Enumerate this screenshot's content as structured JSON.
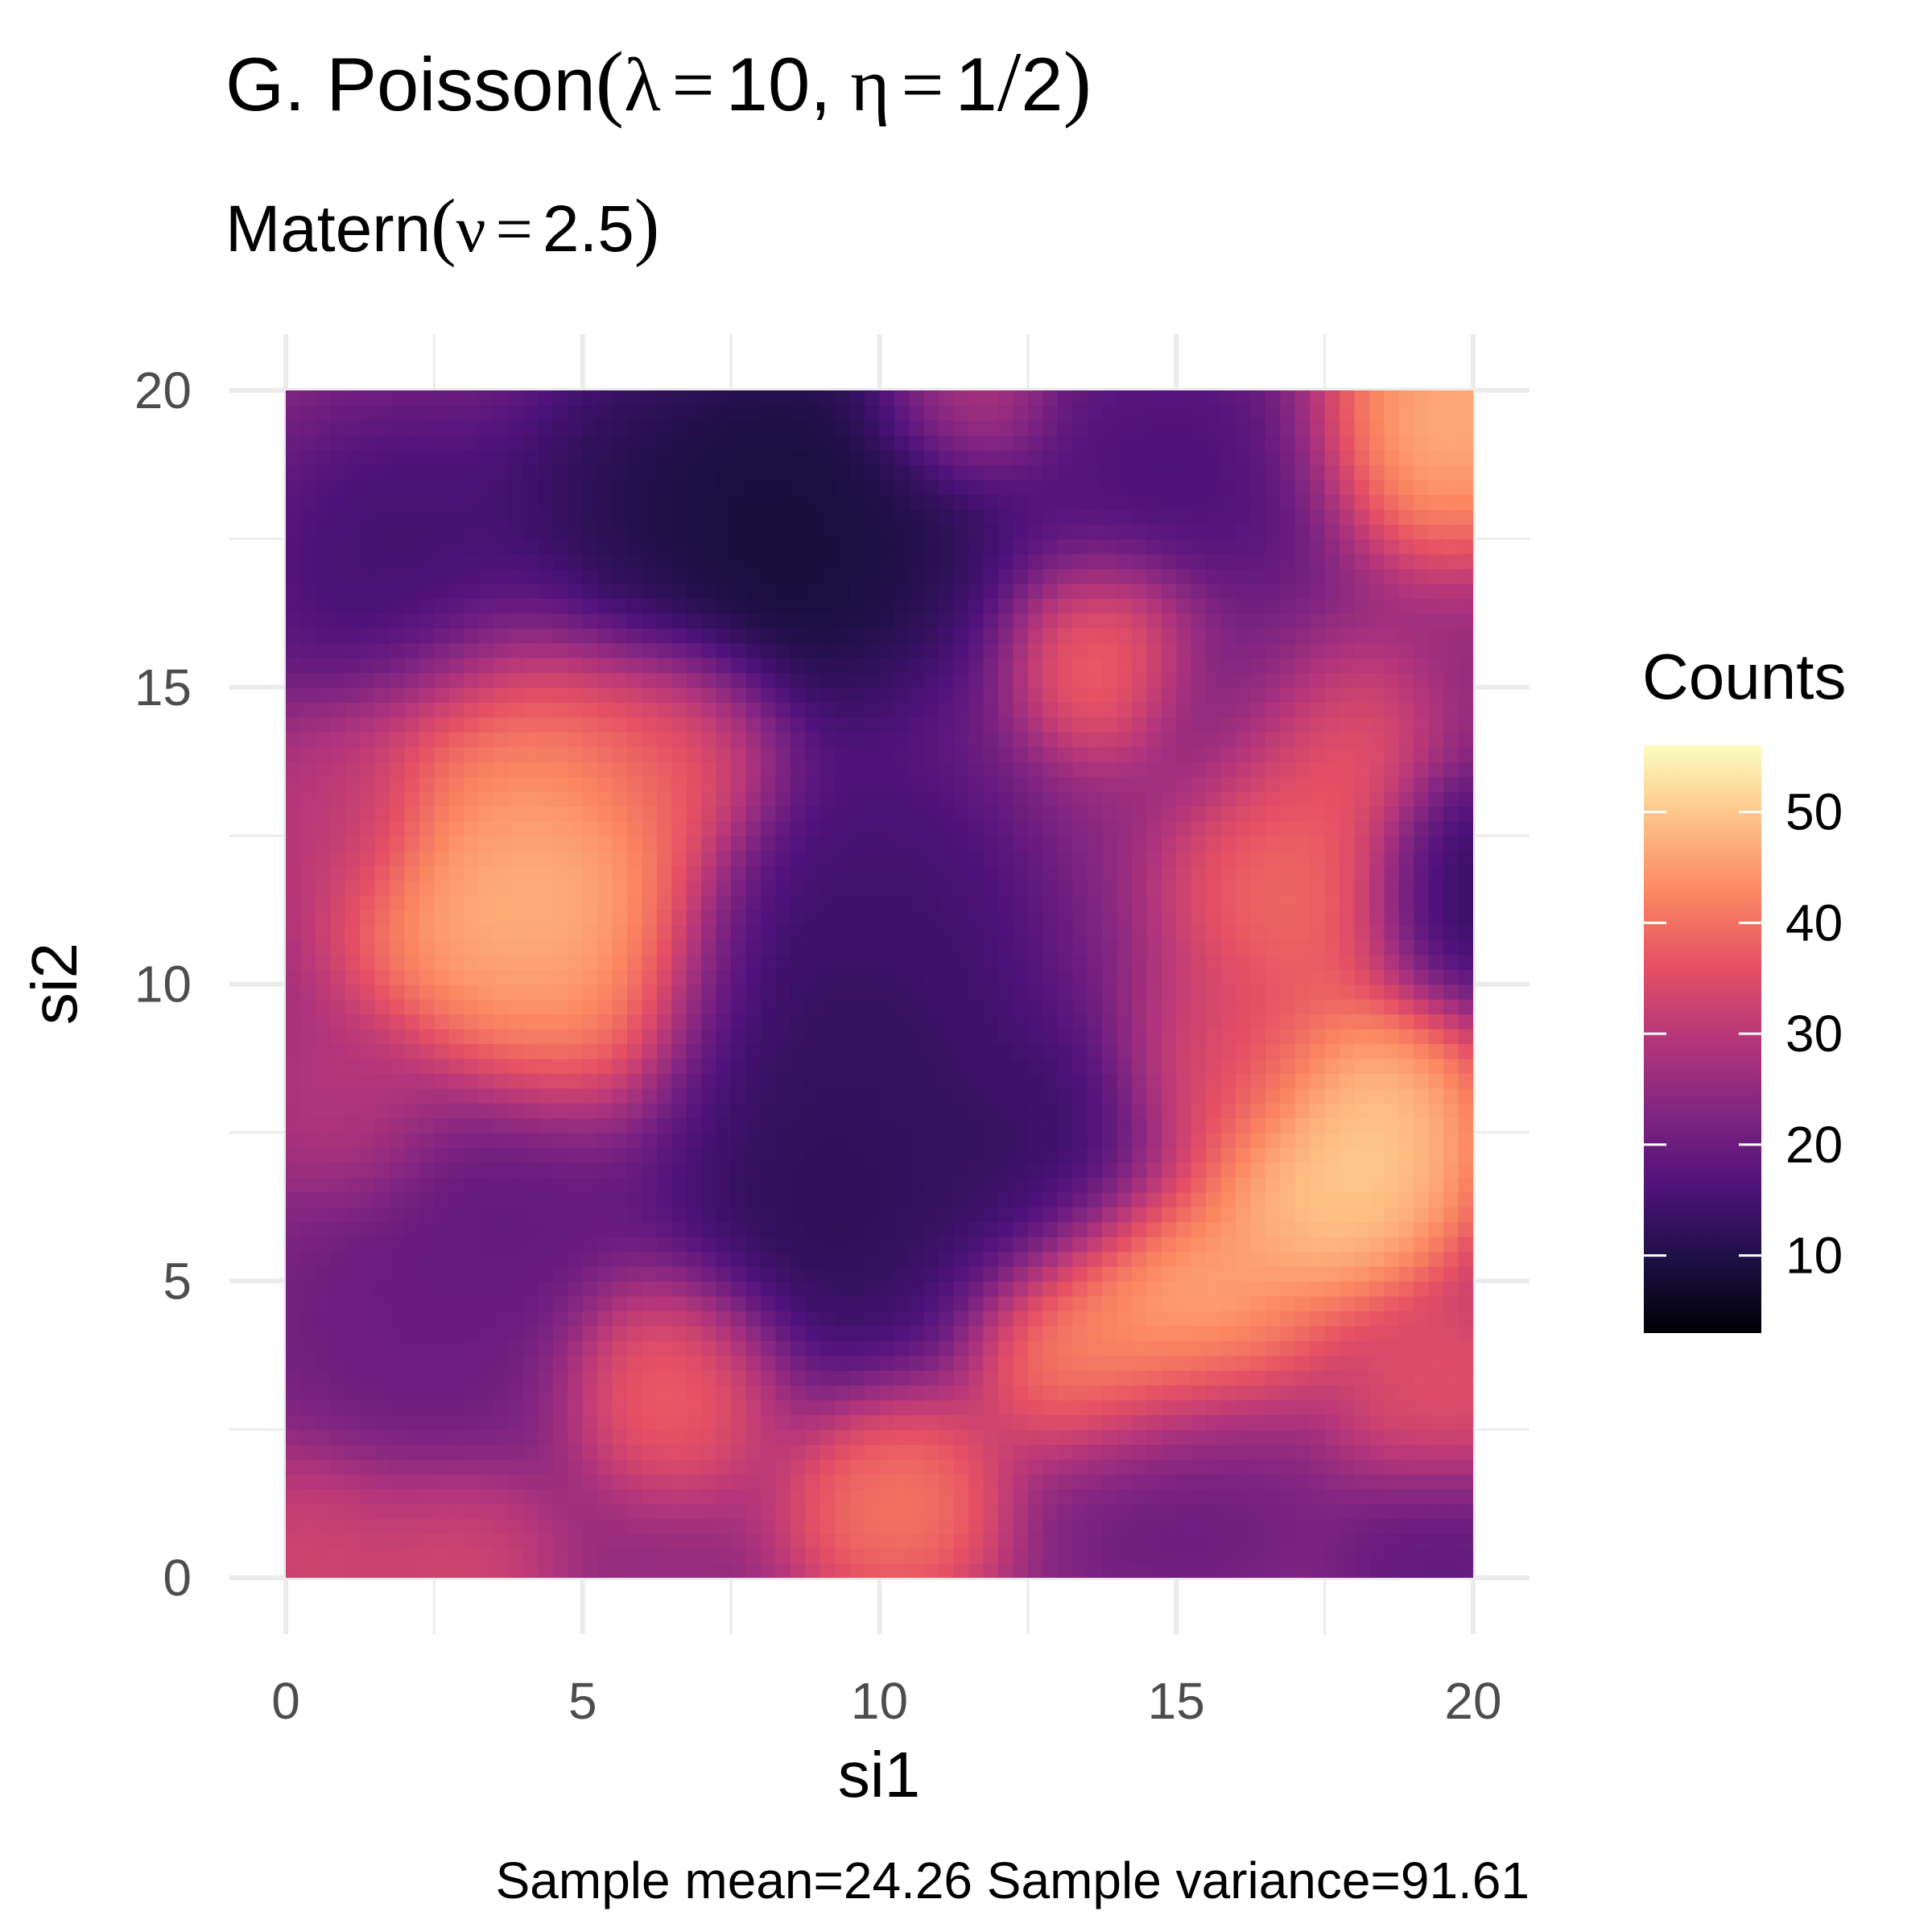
{
  "chart_data": {
    "type": "heatmap",
    "title": {
      "prefix": "G. Poisson",
      "lambda_symbol": "λ",
      "eq": "=",
      "lambda_value": "10",
      "comma": ",",
      "eta_symbol": "η",
      "eta_value_num": "1",
      "eta_value_slash": "/",
      "eta_value_den": "2",
      "open": "(",
      "close": ")"
    },
    "subtitle": {
      "prefix": "Matern",
      "nu_symbol": "ν",
      "eq": "=",
      "nu_value": "2.5",
      "open": "(",
      "close": ")"
    },
    "caption": "Sample mean=24.26 Sample variance=91.61",
    "xlabel": "si1",
    "ylabel": "si2",
    "xlim": [
      0,
      20
    ],
    "ylim": [
      0,
      20
    ],
    "x_ticks": [
      0,
      5,
      10,
      15,
      20
    ],
    "y_ticks": [
      0,
      5,
      10,
      15,
      20
    ],
    "x_tick_labels": [
      "0",
      "5",
      "10",
      "15",
      "20"
    ],
    "y_tick_labels": [
      "0",
      "5",
      "10",
      "15",
      "20"
    ],
    "grid": true,
    "legend": {
      "title": "Counts",
      "position": "right",
      "range": [
        3,
        56
      ],
      "ticks": [
        10,
        20,
        30,
        40,
        50
      ],
      "tick_labels": [
        "10",
        "20",
        "30",
        "40",
        "50"
      ],
      "palette": [
        "#000004",
        "#1c1044",
        "#4f127b",
        "#812581",
        "#b5367a",
        "#e55064",
        "#fb8761",
        "#fec287",
        "#fcfdbf"
      ]
    },
    "base_value": 25,
    "field_features": [
      {
        "x": 4.2,
        "y": 11.5,
        "value": 54,
        "spread": 1.6
      },
      {
        "x": 4.0,
        "y": 13.5,
        "value": 44,
        "spread": 1.5
      },
      {
        "x": 4.3,
        "y": 9.8,
        "value": 46,
        "spread": 1.2
      },
      {
        "x": 6.5,
        "y": 14.0,
        "value": 40,
        "spread": 1.0
      },
      {
        "x": 18.0,
        "y": 7.5,
        "value": 55,
        "spread": 1.3
      },
      {
        "x": 17.6,
        "y": 6.5,
        "value": 52,
        "spread": 1.0
      },
      {
        "x": 15.0,
        "y": 4.4,
        "value": 53,
        "spread": 1.3
      },
      {
        "x": 13.5,
        "y": 3.8,
        "value": 45,
        "spread": 1.0
      },
      {
        "x": 19.5,
        "y": 19.5,
        "value": 52,
        "spread": 1.2
      },
      {
        "x": 6.6,
        "y": 3.4,
        "value": 42,
        "spread": 1.0
      },
      {
        "x": 10.3,
        "y": 1.3,
        "value": 44,
        "spread": 1.0
      },
      {
        "x": 14.0,
        "y": 15.6,
        "value": 44,
        "spread": 0.9
      },
      {
        "x": 17.2,
        "y": 14.0,
        "value": 40,
        "spread": 1.0
      },
      {
        "x": 17.0,
        "y": 11.5,
        "value": 42,
        "spread": 1.1
      },
      {
        "x": 8.3,
        "y": 17.6,
        "value": 4,
        "spread": 2.0
      },
      {
        "x": 6.0,
        "y": 18.0,
        "value": 10,
        "spread": 1.3
      },
      {
        "x": 10.0,
        "y": 18.5,
        "value": 10,
        "spread": 1.2
      },
      {
        "x": 2.0,
        "y": 17.0,
        "value": 12,
        "spread": 1.5
      },
      {
        "x": 9.5,
        "y": 9.6,
        "value": 10,
        "spread": 1.8
      },
      {
        "x": 9.0,
        "y": 6.0,
        "value": 9,
        "spread": 1.6
      },
      {
        "x": 12.5,
        "y": 7.0,
        "value": 11,
        "spread": 1.3
      },
      {
        "x": 10.0,
        "y": 11.5,
        "value": 14,
        "spread": 1.3
      },
      {
        "x": 15.0,
        "y": 18.5,
        "value": 14,
        "spread": 1.5
      },
      {
        "x": 20.0,
        "y": 11.5,
        "value": 10,
        "spread": 1.0
      },
      {
        "x": 3.5,
        "y": 6.5,
        "value": 17,
        "spread": 1.4
      },
      {
        "x": 2.0,
        "y": 4.0,
        "value": 19,
        "spread": 1.5
      },
      {
        "x": 15.0,
        "y": 1.8,
        "value": 18,
        "spread": 1.3
      },
      {
        "x": 19.5,
        "y": 0.5,
        "value": 17,
        "spread": 1.0
      },
      {
        "x": 16.0,
        "y": 15.0,
        "value": 19,
        "spread": 1.0
      },
      {
        "x": 0.5,
        "y": 0.5,
        "value": 35,
        "spread": 1.0
      },
      {
        "x": 2.8,
        "y": 0.3,
        "value": 35,
        "spread": 0.9
      },
      {
        "x": 11.3,
        "y": 19.8,
        "value": 35,
        "spread": 0.8
      },
      {
        "x": 1.3,
        "y": 7.8,
        "value": 31,
        "spread": 0.9
      },
      {
        "x": 19.5,
        "y": 3.0,
        "value": 38,
        "spread": 1.0
      },
      {
        "x": 16.0,
        "y": 8.5,
        "value": 35,
        "spread": 1.0
      },
      {
        "x": 1.0,
        "y": 13.0,
        "value": 30,
        "spread": 0.9
      }
    ]
  }
}
